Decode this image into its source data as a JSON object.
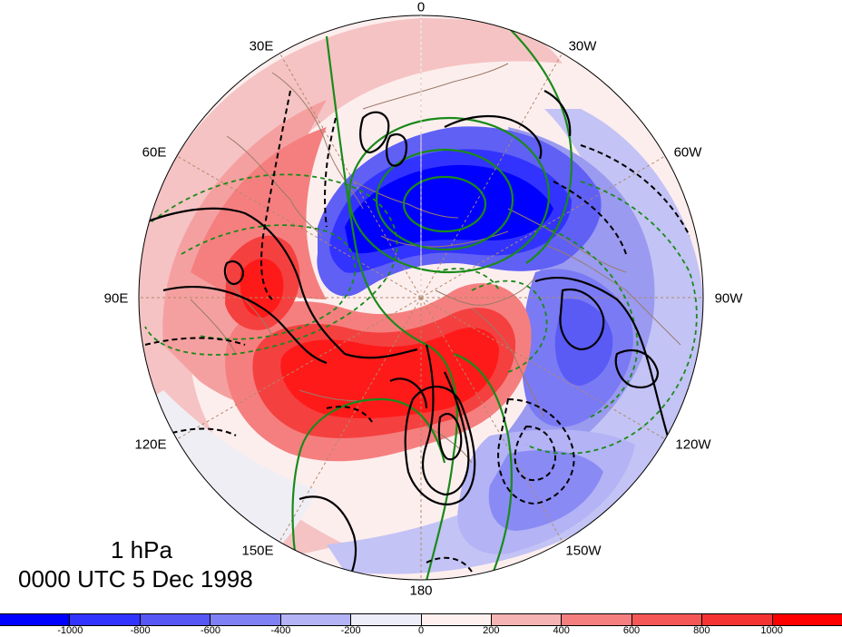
{
  "map": {
    "title_level": "1 hPa",
    "title_time": "0000 UTC 5 Dec 1998",
    "projection": "north-polar-stereographic",
    "longitude_labels": [
      {
        "id": "lon-0",
        "text": "0"
      },
      {
        "id": "lon-30w",
        "text": "30W"
      },
      {
        "id": "lon-60w",
        "text": "60W"
      },
      {
        "id": "lon-90w",
        "text": "90W"
      },
      {
        "id": "lon-120w",
        "text": "120W"
      },
      {
        "id": "lon-150w",
        "text": "150W"
      },
      {
        "id": "lon-180",
        "text": "180"
      },
      {
        "id": "lon-150e",
        "text": "150E"
      },
      {
        "id": "lon-120e",
        "text": "120E"
      },
      {
        "id": "lon-90e",
        "text": "90E"
      },
      {
        "id": "lon-60e",
        "text": "60E"
      },
      {
        "id": "lon-30e",
        "text": "30E"
      }
    ],
    "shading_field": "anomaly (blue negative, red positive)",
    "contours": {
      "black_solid": "positive contours",
      "black_dashed": "negative contours",
      "green_solid": "positive contours",
      "green_dashed": "negative contours"
    }
  },
  "colorbar": {
    "tick_labels": [
      "-1000",
      "-800",
      "-600",
      "-400",
      "-200",
      "0",
      "200",
      "400",
      "600",
      "800",
      "1000"
    ],
    "colors": [
      "#0000ff",
      "#3333ff",
      "#5757f5",
      "#8080f5",
      "#b3b3f5",
      "#ededfa",
      "#fff0f0",
      "#f5b3b3",
      "#f57f7f",
      "#f55757",
      "#f53333",
      "#ff0000"
    ]
  }
}
